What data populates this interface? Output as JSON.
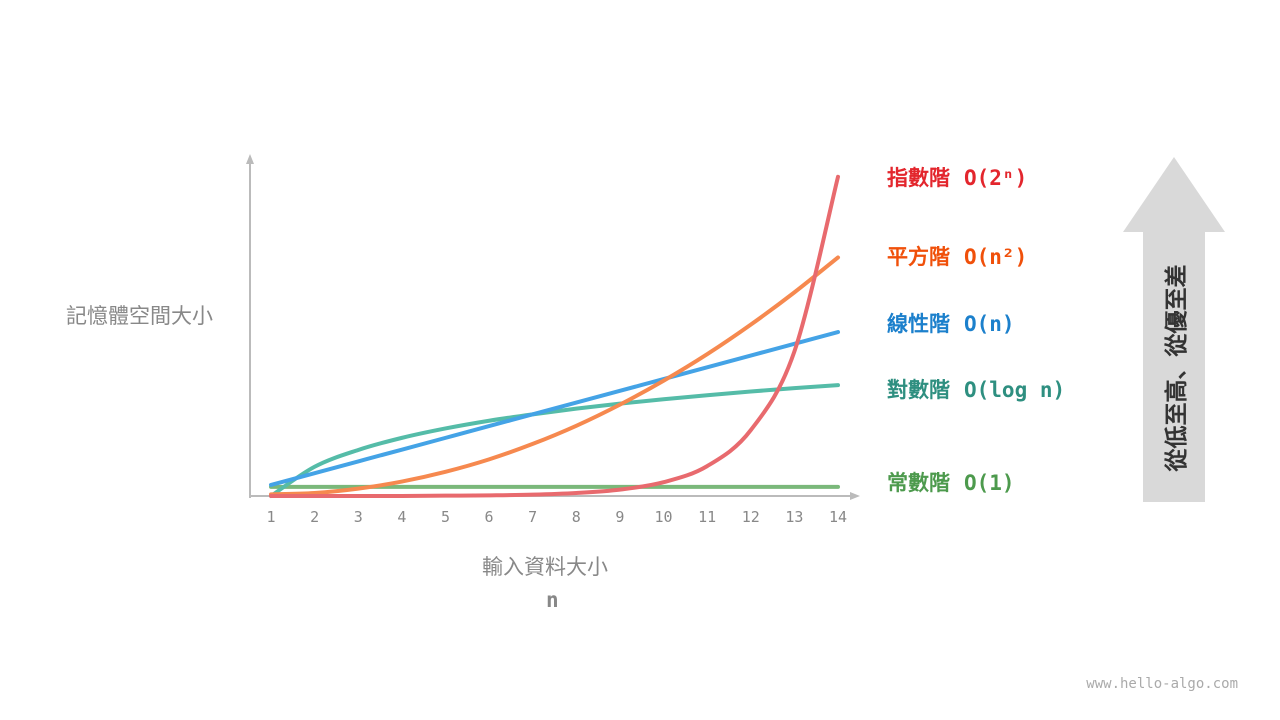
{
  "chart_data": {
    "type": "line",
    "title": "",
    "xlabel": "輸入資料大小",
    "xlabel_symbol": "n",
    "ylabel": "記憶體空間大小",
    "x": [
      1,
      2,
      3,
      4,
      5,
      6,
      7,
      8,
      9,
      10,
      11,
      12,
      13,
      14
    ],
    "xlim": [
      1,
      14
    ],
    "ylim": [
      0,
      100
    ],
    "grid": false,
    "y_ticks_shown": false,
    "series": [
      {
        "name": "指數階",
        "notation": "O(2ⁿ)",
        "color": "#e86a6e",
        "label_color": "#e3262d",
        "values": [
          0,
          0,
          0,
          0,
          0.1,
          0.2,
          0.4,
          0.9,
          1.9,
          4.1,
          8.9,
          19.6,
          43,
          95
        ]
      },
      {
        "name": "平方階",
        "notation": "O(n²)",
        "color": "#f6894f",
        "label_color": "#f0500a",
        "values": [
          0.5,
          0.9,
          2.2,
          4.3,
          7.2,
          10.9,
          15.5,
          20.9,
          27.2,
          34.3,
          42.2,
          51.0,
          60.6,
          71.0
        ]
      },
      {
        "name": "線性階",
        "notation": "O(n)",
        "color": "#44a3e6",
        "label_color": "#1c80cc",
        "values": [
          3.3,
          6.8,
          10.3,
          13.8,
          17.3,
          20.8,
          24.3,
          27.8,
          31.3,
          34.8,
          38.3,
          41.8,
          45.3,
          48.8
        ]
      },
      {
        "name": "對數階",
        "notation": "O(log n)",
        "color": "#55bca8",
        "label_color": "#2e8f80",
        "values": [
          0,
          8.7,
          13.7,
          17.3,
          20.1,
          22.4,
          24.3,
          26.0,
          27.5,
          28.8,
          30.0,
          31.1,
          32.1,
          33.0
        ]
      },
      {
        "name": "常數階",
        "notation": "O(1)",
        "color": "#7ab87a",
        "label_color": "#4d9a4d",
        "values": [
          2.7,
          2.7,
          2.7,
          2.7,
          2.7,
          2.7,
          2.7,
          2.7,
          2.7,
          2.7,
          2.7,
          2.7,
          2.7,
          2.7
        ]
      }
    ],
    "legend_placement": "right"
  },
  "arrow": {
    "text": "從低至高、從優至差",
    "color": "#d9d9d9"
  },
  "watermark": "www.hello-algo.com"
}
